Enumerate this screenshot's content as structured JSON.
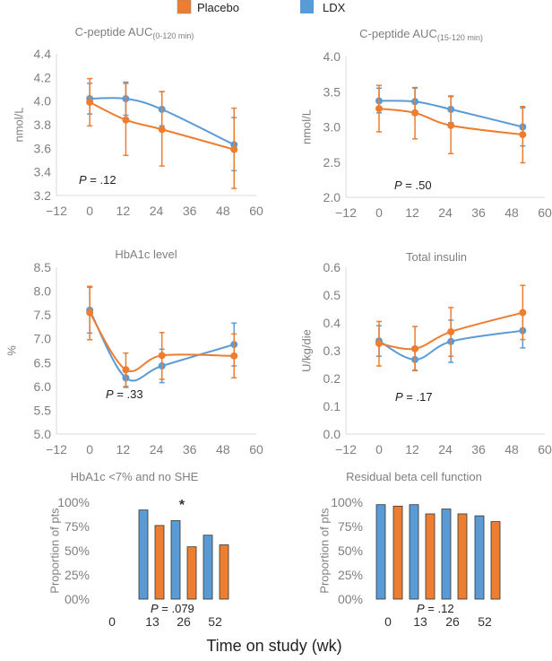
{
  "legend": {
    "items": [
      {
        "name": "Placebo",
        "color": "#ED7D31"
      },
      {
        "name": "LDX",
        "color": "#5B9BD5"
      }
    ]
  },
  "shared_xlabel": "Time on study (wk)",
  "chart_data": [
    {
      "type": "line",
      "title": "C-peptide AUC",
      "title_subscript": "(0-120 min)",
      "ylabel": "nmol/L",
      "xlim": [
        -12,
        60
      ],
      "xticks": [
        -12,
        0,
        12,
        24,
        36,
        48,
        60
      ],
      "ylim": [
        3.2,
        4.4
      ],
      "yticks": [
        "3.2",
        "3.4",
        "3.6",
        "3.8",
        "4.0",
        "4.2",
        "4.4"
      ],
      "grid": false,
      "x": [
        0,
        13,
        26,
        52
      ],
      "series": [
        {
          "name": "LDX",
          "values": [
            4.02,
            4.02,
            3.93,
            3.63
          ],
          "err_low": [
            3.89,
            3.88,
            3.79,
            3.41
          ],
          "err_high": [
            4.15,
            4.16,
            4.08,
            3.86
          ]
        },
        {
          "name": "Placebo",
          "values": [
            3.99,
            3.84,
            3.76,
            3.59
          ],
          "err_low": [
            3.79,
            3.54,
            3.45,
            3.26
          ],
          "err_high": [
            4.19,
            4.15,
            4.08,
            3.94
          ]
        }
      ],
      "annotation": "P = .12"
    },
    {
      "type": "line",
      "title": "C-peptide AUC",
      "title_subscript": "(15-120 min)",
      "ylabel": "nmol/L",
      "xlim": [
        -12,
        60
      ],
      "xticks": [
        -12,
        0,
        12,
        24,
        36,
        48,
        60
      ],
      "ylim": [
        2.0,
        4.0
      ],
      "yticks": [
        "2.0",
        "2.5",
        "3.0",
        "3.5",
        "4.0"
      ],
      "grid": false,
      "x": [
        0,
        13,
        26,
        52
      ],
      "series": [
        {
          "name": "LDX",
          "values": [
            3.37,
            3.36,
            3.25,
            3.0
          ],
          "err_low": [
            3.2,
            3.17,
            3.06,
            2.73
          ],
          "err_high": [
            3.55,
            3.55,
            3.44,
            3.27
          ]
        },
        {
          "name": "Placebo",
          "values": [
            3.26,
            3.2,
            3.02,
            2.89
          ],
          "err_low": [
            2.93,
            2.83,
            2.62,
            2.49
          ],
          "err_high": [
            3.59,
            3.56,
            3.43,
            3.29
          ]
        }
      ],
      "annotation": "P = .50"
    },
    {
      "type": "line",
      "title": "HbA1c level",
      "ylabel": "%",
      "xlim": [
        -12,
        60
      ],
      "xticks": [
        -12,
        0,
        12,
        24,
        36,
        48,
        60
      ],
      "ylim": [
        5.0,
        8.5
      ],
      "yticks": [
        "5.0",
        "5.5",
        "6.0",
        "6.5",
        "7.0",
        "7.5",
        "8.0",
        "8.5"
      ],
      "grid": false,
      "x": [
        0,
        13,
        26,
        52
      ],
      "series": [
        {
          "name": "LDX",
          "values": [
            7.6,
            6.18,
            6.43,
            6.88
          ],
          "err_low": [
            7.12,
            5.98,
            6.08,
            6.43
          ],
          "err_high": [
            8.08,
            6.38,
            6.78,
            7.33
          ]
        },
        {
          "name": "Placebo",
          "values": [
            7.55,
            6.35,
            6.65,
            6.64
          ],
          "err_low": [
            6.98,
            6.0,
            6.15,
            6.18
          ],
          "err_high": [
            8.1,
            6.7,
            7.13,
            7.1
          ]
        }
      ],
      "annotation": "P = .33"
    },
    {
      "type": "line",
      "title": "Total insulin",
      "ylabel": "U/kg/die",
      "xlim": [
        -12,
        60
      ],
      "xticks": [
        -12,
        0,
        12,
        24,
        36,
        48,
        60
      ],
      "ylim": [
        0.0,
        0.6
      ],
      "yticks": [
        "0.0",
        "0.1",
        "0.2",
        "0.3",
        "0.4",
        "0.5",
        "0.6"
      ],
      "grid": false,
      "x": [
        0,
        13,
        26,
        52
      ],
      "series": [
        {
          "name": "LDX",
          "values": [
            0.335,
            0.268,
            0.333,
            0.372
          ],
          "err_low": [
            0.28,
            0.23,
            0.258,
            0.31
          ],
          "err_high": [
            0.39,
            0.306,
            0.41,
            0.435
          ]
        },
        {
          "name": "Placebo",
          "values": [
            0.326,
            0.307,
            0.368,
            0.437
          ],
          "err_low": [
            0.245,
            0.228,
            0.28,
            0.34
          ],
          "err_high": [
            0.405,
            0.387,
            0.455,
            0.535
          ]
        }
      ],
      "annotation": "P = .17"
    },
    {
      "type": "bar",
      "title": "HbA1c <7% and no SHE",
      "ylabel": "Proportion of pts",
      "ylim": [
        0,
        100
      ],
      "yticks": [
        "00%",
        "25%",
        "50%",
        "75%",
        "100%"
      ],
      "grid": false,
      "categories": [
        "0",
        "13",
        "26",
        "52"
      ],
      "series": [
        {
          "name": "LDX",
          "values": [
            null,
            92,
            81,
            66
          ]
        },
        {
          "name": "Placebo",
          "values": [
            null,
            76,
            54,
            56
          ]
        }
      ],
      "annotation": "P = .079",
      "significance_marker": "*"
    },
    {
      "type": "bar",
      "title": "Residual beta cell function",
      "ylabel": "Proportion of pts",
      "ylim": [
        0,
        100
      ],
      "yticks": [
        "00%",
        "25%",
        "50%",
        "75%",
        "100%"
      ],
      "grid": false,
      "categories": [
        "0",
        "13",
        "26",
        "52"
      ],
      "series": [
        {
          "name": "LDX",
          "values": [
            97.5,
            97.5,
            93,
            86
          ]
        },
        {
          "name": "Placebo",
          "values": [
            96,
            88,
            88,
            80
          ]
        }
      ],
      "annotation": "P = .12"
    }
  ]
}
